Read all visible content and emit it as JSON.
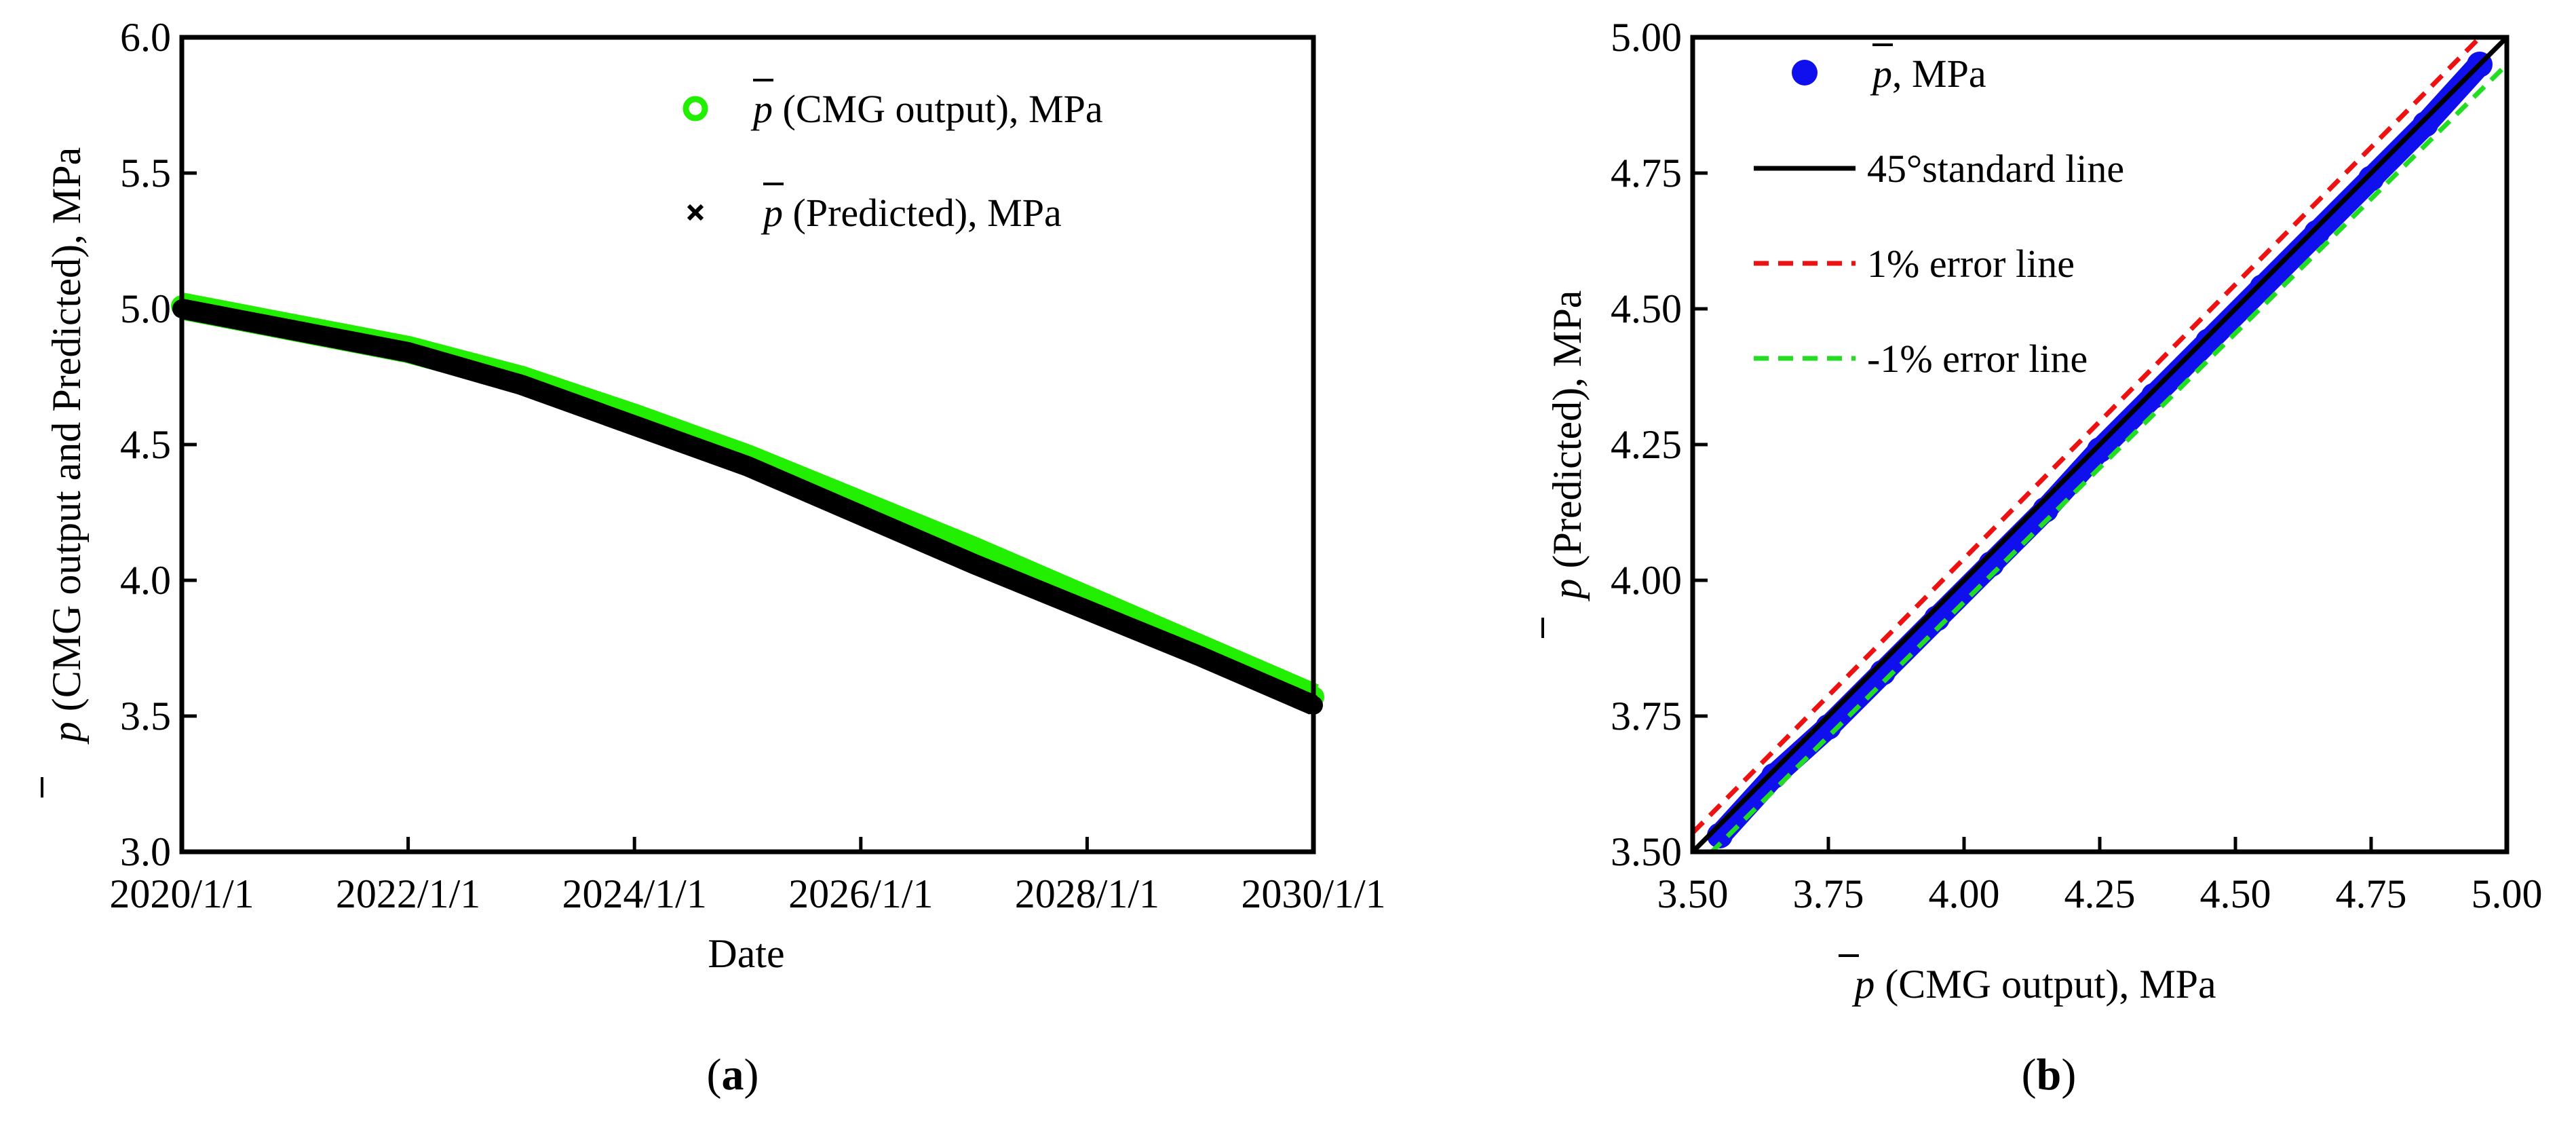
{
  "chart_data": [
    {
      "type": "line",
      "panel_label": "a",
      "title": "",
      "xlabel": "Date",
      "ylabel_prefix": "p",
      "ylabel_rest": " (CMG output and Predicted), MPa",
      "ylim": [
        3.0,
        6.0
      ],
      "yticks": [
        "3.0",
        "3.5",
        "4.0",
        "4.5",
        "5.0",
        "5.5",
        "6.0"
      ],
      "xlim": [
        2020,
        2030
      ],
      "xticks": [
        {
          "v": 2020,
          "label": "2020/1/1"
        },
        {
          "v": 2022,
          "label": "2022/1/1"
        },
        {
          "v": 2024,
          "label": "2024/1/1"
        },
        {
          "v": 2026,
          "label": "2026/1/1"
        },
        {
          "v": 2028,
          "label": "2028/1/1"
        },
        {
          "v": 2030,
          "label": "2030/1/1"
        }
      ],
      "series": [
        {
          "name": "p (CMG output), MPa",
          "legend_prefix": "p",
          "legend_rest": " (CMG output), MPa",
          "marker": "circle",
          "color": "#22ee00",
          "x": [
            2020,
            2021,
            2022,
            2023,
            2024,
            2025,
            2026,
            2027,
            2028,
            2029,
            2030
          ],
          "y": [
            5.01,
            4.93,
            4.85,
            4.74,
            4.6,
            4.45,
            4.28,
            4.11,
            3.93,
            3.75,
            3.57
          ]
        },
        {
          "name": "p (Predicted), MPa",
          "legend_prefix": "p",
          "legend_rest": " (Predicted), MPa",
          "marker": "x",
          "color": "#000000",
          "x": [
            2020,
            2021,
            2022,
            2023,
            2024,
            2025,
            2026,
            2027,
            2028,
            2029,
            2030
          ],
          "y": [
            5.0,
            4.92,
            4.84,
            4.72,
            4.57,
            4.42,
            4.24,
            4.06,
            3.89,
            3.72,
            3.54
          ]
        }
      ]
    },
    {
      "type": "scatter",
      "panel_label": "b",
      "title": "",
      "xlabel_prefix": "p",
      "xlabel_rest": " (CMG output), MPa",
      "ylabel_prefix": "p",
      "ylabel_rest": " (Predicted), MPa",
      "xlim": [
        3.5,
        5.0
      ],
      "ylim": [
        3.5,
        5.0
      ],
      "xticks": [
        "3.50",
        "3.75",
        "4.00",
        "4.25",
        "4.50",
        "4.75",
        "5.00"
      ],
      "yticks": [
        "3.50",
        "3.75",
        "4.00",
        "4.25",
        "4.50",
        "4.75",
        "5.00"
      ],
      "series": [
        {
          "name": "p, MPa",
          "legend_prefix": "p",
          "legend_rest": ", MPa",
          "marker": "dot",
          "color": "#1010ee",
          "x": [
            3.55,
            3.65,
            3.75,
            3.85,
            3.95,
            4.05,
            4.15,
            4.25,
            4.35,
            4.45,
            4.55,
            4.65,
            4.75,
            4.85,
            4.95
          ],
          "y": [
            3.53,
            3.64,
            3.73,
            3.83,
            3.93,
            4.03,
            4.13,
            4.24,
            4.34,
            4.44,
            4.54,
            4.64,
            4.74,
            4.84,
            4.95
          ]
        }
      ],
      "reference_lines": [
        {
          "name": "45°standard line",
          "slope": 1.0,
          "color": "#000000",
          "dash": "solid"
        },
        {
          "name": "1% error line",
          "slope": 1.01,
          "color": "#ee1111",
          "dash": "dashed"
        },
        {
          "name": "-1% error line",
          "slope": 0.99,
          "color": "#22dd22",
          "dash": "dashed"
        }
      ]
    }
  ]
}
